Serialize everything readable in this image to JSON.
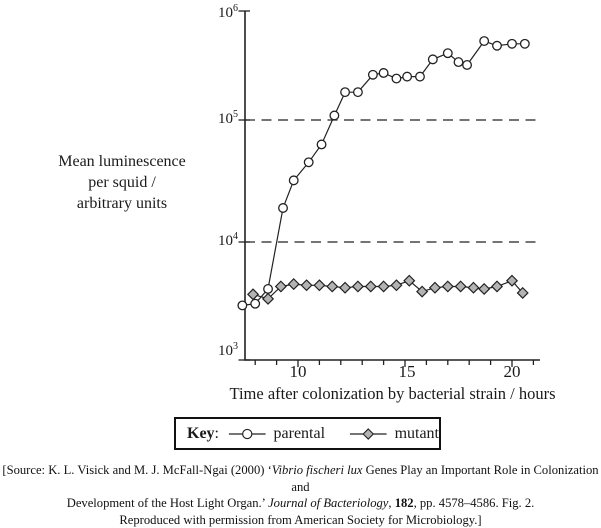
{
  "figure": {
    "y_axis": {
      "label_lines": [
        "Mean luminescence",
        "per squid /",
        "arbitrary units"
      ],
      "ticks": [
        {
          "base": "10",
          "exp": "6"
        },
        {
          "base": "10",
          "exp": "5"
        },
        {
          "base": "10",
          "exp": "4"
        },
        {
          "base": "10",
          "exp": "3"
        }
      ]
    },
    "x_axis": {
      "title": "Time after colonization by bacterial strain / hours",
      "major_ticks": [
        "10",
        "15",
        "20"
      ]
    },
    "key": {
      "label_bold": "Key",
      "label_colon": ":",
      "series1": "parental",
      "series2": "mutant"
    },
    "source": {
      "line1": {
        "pre": "[Source: K. L. Visick and M. J. McFall-Ngai (2000) ‘",
        "italic": "Vibrio fischeri lux",
        "post": " Genes Play an Important Role in Colonization and"
      },
      "line2": {
        "pre": "Development of the Host Light Organ.’ ",
        "italic": "Journal of Bacteriology",
        "mid": ", ",
        "bold": "182",
        "post": ", pp. 4578–4586. Fig. 2."
      },
      "line3": "Reproduced with permission from American Society for Microbiology.]"
    },
    "colors": {
      "line": "#222222",
      "mutant_fill": "#b3b3b3",
      "parental_fill": "#ffffff"
    }
  },
  "chart_data": {
    "type": "line",
    "title": "",
    "xlabel": "Time after colonization by bacterial strain / hours",
    "ylabel": "Mean luminescence per squid / arbitrary units",
    "x_axis": {
      "min": 7.55,
      "max": 21.3,
      "major_ticks": [
        10,
        15,
        20
      ],
      "minor_tick_step": 1,
      "minor_range": [
        8,
        21
      ]
    },
    "y_axis": {
      "scale": "log",
      "min": 1000,
      "max": 1000000,
      "ticks": [
        1000000,
        100000,
        10000,
        1000
      ],
      "dashed_gridlines": [
        100000,
        10000
      ]
    },
    "legend": {
      "position": "bottom",
      "entries": [
        "parental",
        "mutant"
      ]
    },
    "series": [
      {
        "name": "parental",
        "marker": "circle",
        "fill": "#ffffff",
        "points": [
          {
            "x": 7.4,
            "y": 2900
          },
          {
            "x": 8.0,
            "y": 3000
          },
          {
            "x": 8.6,
            "y": 4000
          },
          {
            "x": 9.3,
            "y": 19000
          },
          {
            "x": 9.8,
            "y": 32000
          },
          {
            "x": 10.5,
            "y": 45000
          },
          {
            "x": 11.1,
            "y": 63000
          },
          {
            "x": 11.7,
            "y": 110000
          },
          {
            "x": 12.2,
            "y": 180000
          },
          {
            "x": 12.8,
            "y": 180000
          },
          {
            "x": 13.5,
            "y": 260000
          },
          {
            "x": 14.0,
            "y": 270000
          },
          {
            "x": 14.6,
            "y": 240000
          },
          {
            "x": 15.1,
            "y": 250000
          },
          {
            "x": 15.7,
            "y": 250000
          },
          {
            "x": 16.3,
            "y": 360000
          },
          {
            "x": 17.0,
            "y": 410000
          },
          {
            "x": 17.5,
            "y": 340000
          },
          {
            "x": 17.9,
            "y": 320000
          },
          {
            "x": 18.7,
            "y": 530000
          },
          {
            "x": 19.3,
            "y": 480000
          },
          {
            "x": 20.0,
            "y": 500000
          },
          {
            "x": 20.6,
            "y": 500000
          }
        ]
      },
      {
        "name": "mutant",
        "marker": "diamond",
        "fill": "#b3b3b3",
        "points": [
          {
            "x": 7.9,
            "y": 3600
          },
          {
            "x": 8.6,
            "y": 3300
          },
          {
            "x": 9.2,
            "y": 4200
          },
          {
            "x": 9.8,
            "y": 4400
          },
          {
            "x": 10.4,
            "y": 4300
          },
          {
            "x": 11.0,
            "y": 4300
          },
          {
            "x": 11.6,
            "y": 4200
          },
          {
            "x": 12.2,
            "y": 4100
          },
          {
            "x": 12.8,
            "y": 4200
          },
          {
            "x": 13.4,
            "y": 4200
          },
          {
            "x": 14.0,
            "y": 4200
          },
          {
            "x": 14.6,
            "y": 4300
          },
          {
            "x": 15.2,
            "y": 4700
          },
          {
            "x": 15.8,
            "y": 3800
          },
          {
            "x": 16.4,
            "y": 4100
          },
          {
            "x": 17.0,
            "y": 4200
          },
          {
            "x": 17.6,
            "y": 4200
          },
          {
            "x": 18.2,
            "y": 4100
          },
          {
            "x": 18.7,
            "y": 4000
          },
          {
            "x": 19.3,
            "y": 4200
          },
          {
            "x": 20.0,
            "y": 4700
          },
          {
            "x": 20.5,
            "y": 3700
          }
        ]
      }
    ]
  }
}
